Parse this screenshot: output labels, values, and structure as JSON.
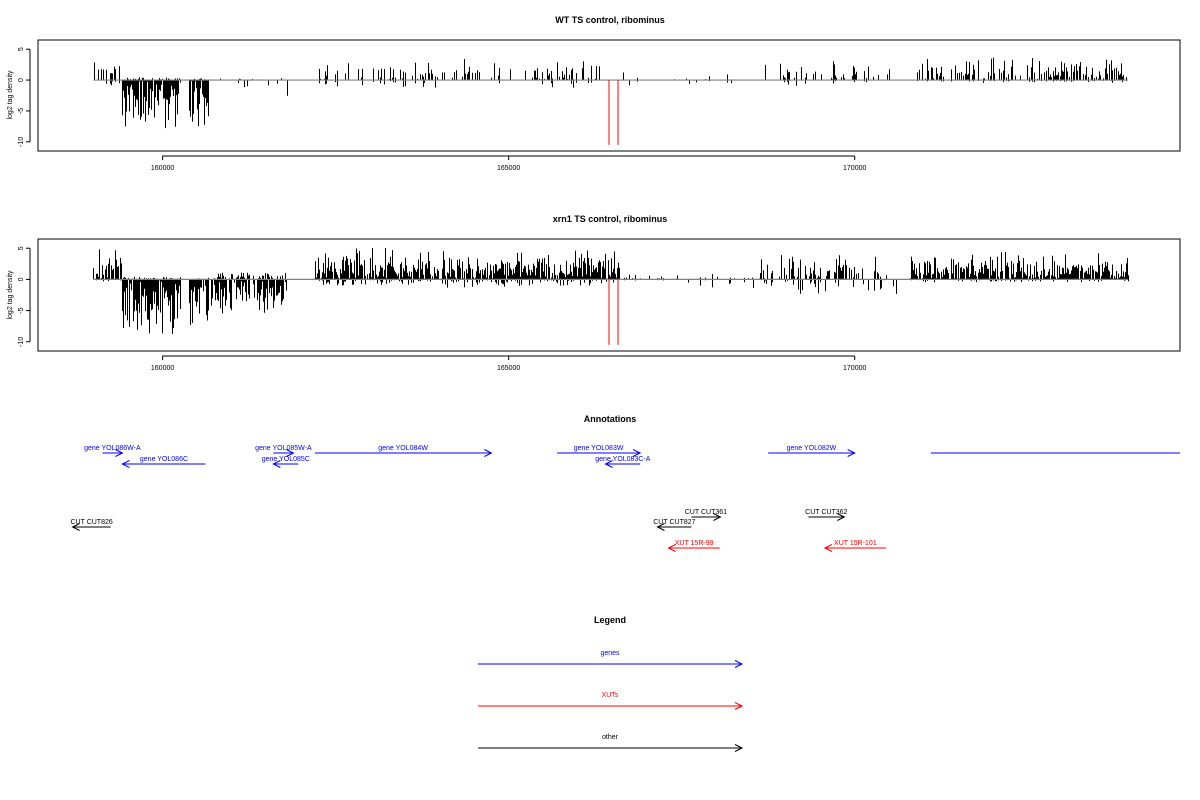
{
  "colors": {
    "genes": "#0000ff",
    "xuts": "#ff0000",
    "other": "#000000",
    "bars": "#000000",
    "baseline": "#808080",
    "markers": "#ff0000"
  },
  "chart_data": [
    {
      "type": "bar",
      "title": "WT TS control, ribominus",
      "ylabel": "log2 tag density",
      "xlim": [
        158200,
        174700
      ],
      "ylim": [
        -11,
        6
      ],
      "xticks": [
        160000,
        165000,
        170000
      ],
      "yticks": [
        5,
        0,
        -5,
        -10
      ],
      "grid": false,
      "marker_positions": [
        166450,
        166580
      ],
      "density_segments": [
        {
          "x0": 159000,
          "x1": 159400,
          "pos": 4.5,
          "neg": 1.5,
          "density": 0.5
        },
        {
          "x0": 159420,
          "x1": 160250,
          "pos": 0.5,
          "neg": 9,
          "density": 1.0
        },
        {
          "x0": 160380,
          "x1": 160650,
          "pos": 0.3,
          "neg": 9,
          "density": 1.0
        },
        {
          "x0": 160700,
          "x1": 161800,
          "pos": 0.5,
          "neg": 3,
          "density": 0.3
        },
        {
          "x0": 162200,
          "x1": 166300,
          "pos": 3.5,
          "neg": 1.5,
          "density": 0.35
        },
        {
          "x0": 166600,
          "x1": 168400,
          "pos": 1.5,
          "neg": 2.0,
          "density": 0.15
        },
        {
          "x0": 168700,
          "x1": 170500,
          "pos": 3.5,
          "neg": 1.5,
          "density": 0.35
        },
        {
          "x0": 170900,
          "x1": 173950,
          "pos": 4.0,
          "neg": 0.5,
          "density": 0.6
        }
      ]
    },
    {
      "type": "bar",
      "title": "xrn1 TS control, ribominus",
      "ylabel": "log2 tag density",
      "xlim": [
        158200,
        174700
      ],
      "ylim": [
        -11,
        6
      ],
      "xticks": [
        160000,
        165000,
        170000
      ],
      "yticks": [
        5,
        0,
        -5,
        -10
      ],
      "grid": false,
      "marker_positions": [
        166450,
        166580
      ],
      "density_segments": [
        {
          "x0": 159000,
          "x1": 159400,
          "pos": 5.5,
          "neg": 0.5,
          "density": 0.7
        },
        {
          "x0": 159420,
          "x1": 160250,
          "pos": 0.5,
          "neg": 9.5,
          "density": 1.0
        },
        {
          "x0": 160380,
          "x1": 160650,
          "pos": 0.3,
          "neg": 10,
          "density": 1.0
        },
        {
          "x0": 160700,
          "x1": 161800,
          "pos": 1.5,
          "neg": 6,
          "density": 0.8
        },
        {
          "x0": 162200,
          "x1": 166600,
          "pos": 5.5,
          "neg": 1.5,
          "density": 0.95
        },
        {
          "x0": 166600,
          "x1": 168600,
          "pos": 1.0,
          "neg": 2.5,
          "density": 0.2
        },
        {
          "x0": 168600,
          "x1": 170600,
          "pos": 4.5,
          "neg": 3.0,
          "density": 0.75
        },
        {
          "x0": 170800,
          "x1": 173950,
          "pos": 4.5,
          "neg": 0.5,
          "density": 0.95
        }
      ]
    }
  ],
  "annotations": {
    "title": "Annotations",
    "features": [
      {
        "label": "gene YOL086W-A",
        "kind": "genes",
        "start": 159130,
        "end": 159420,
        "strand": "+",
        "row": 0
      },
      {
        "label": "gene YOL086C",
        "kind": "genes",
        "start": 159420,
        "end": 160620,
        "strand": "-",
        "row": 1
      },
      {
        "label": "gene YOL085W-A",
        "kind": "genes",
        "start": 161600,
        "end": 161890,
        "strand": "+",
        "row": 0
      },
      {
        "label": "gene YOL085C",
        "kind": "genes",
        "start": 161600,
        "end": 161960,
        "strand": "-",
        "row": 1
      },
      {
        "label": "gene YOL084W",
        "kind": "genes",
        "start": 162200,
        "end": 164750,
        "strand": "+",
        "row": 0
      },
      {
        "label": "gene YOL083W",
        "kind": "genes",
        "start": 165700,
        "end": 166900,
        "strand": "+",
        "row": 0
      },
      {
        "label": "gene YOL083C-A",
        "kind": "genes",
        "start": 166400,
        "end": 166900,
        "strand": "-",
        "row": 1
      },
      {
        "label": "gene YOL082W",
        "kind": "genes",
        "start": 168750,
        "end": 170000,
        "strand": "+",
        "row": 0
      },
      {
        "label": "",
        "kind": "genes",
        "start": 171100,
        "end": 174700,
        "strand": "+",
        "row": 0
      },
      {
        "label": "CUT CUT826",
        "kind": "other",
        "start": 158700,
        "end": 159250,
        "strand": "-",
        "row": 3
      },
      {
        "label": "CUT CUT361",
        "kind": "other",
        "start": 167640,
        "end": 168060,
        "strand": "+",
        "row": 2
      },
      {
        "label": "CUT CUT827",
        "kind": "other",
        "start": 167150,
        "end": 167640,
        "strand": "-",
        "row": 3
      },
      {
        "label": "CUT CUT362",
        "kind": "other",
        "start": 169330,
        "end": 169850,
        "strand": "+",
        "row": 2
      },
      {
        "label": "XUT 15R-99",
        "kind": "xuts",
        "start": 167310,
        "end": 168050,
        "strand": "-",
        "row": 4
      },
      {
        "label": "XUT 15R-101",
        "kind": "xuts",
        "start": 169570,
        "end": 170450,
        "strand": "-",
        "row": 4
      }
    ]
  },
  "legend": {
    "title": "Legend",
    "entries": [
      {
        "label": "genes",
        "kind": "genes"
      },
      {
        "label": "XUTs",
        "kind": "xuts"
      },
      {
        "label": "other",
        "kind": "other"
      }
    ]
  }
}
